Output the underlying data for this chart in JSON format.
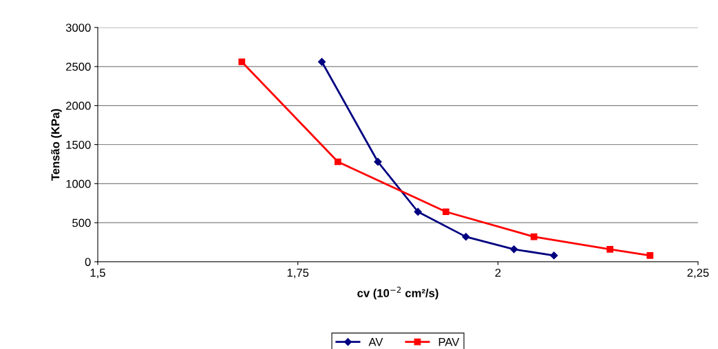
{
  "chart_data": {
    "type": "line",
    "xlabel": "cv (10$^{−2}$ cm²/s)",
    "ylabel": "Tensão (KPa)",
    "series": [
      {
        "name": "AV",
        "color": "#000080",
        "marker": "diamond",
        "x": [
          1.78,
          1.85,
          1.9,
          1.96,
          2.02,
          2.07
        ],
        "values": [
          2560,
          1280,
          640,
          320,
          160,
          80
        ]
      },
      {
        "name": "PAV",
        "color": "#ff0000",
        "marker": "square",
        "x": [
          1.68,
          1.8,
          1.935,
          2.045,
          2.14,
          2.19
        ],
        "values": [
          2560,
          1280,
          640,
          320,
          160,
          80
        ]
      }
    ],
    "xlim": [
      1.5,
      2.25
    ],
    "xticks": [
      {
        "value": 1.5,
        "label": "1,5"
      },
      {
        "value": 1.75,
        "label": "1,75"
      },
      {
        "value": 2,
        "label": "2"
      },
      {
        "value": 2.25,
        "label": "2,25"
      }
    ],
    "ylim": [
      0,
      3000
    ],
    "yticks": [
      0,
      500,
      1000,
      1500,
      2000,
      2500,
      3000
    ],
    "grid": "y",
    "legend": "bottom",
    "line_style": "solid"
  }
}
